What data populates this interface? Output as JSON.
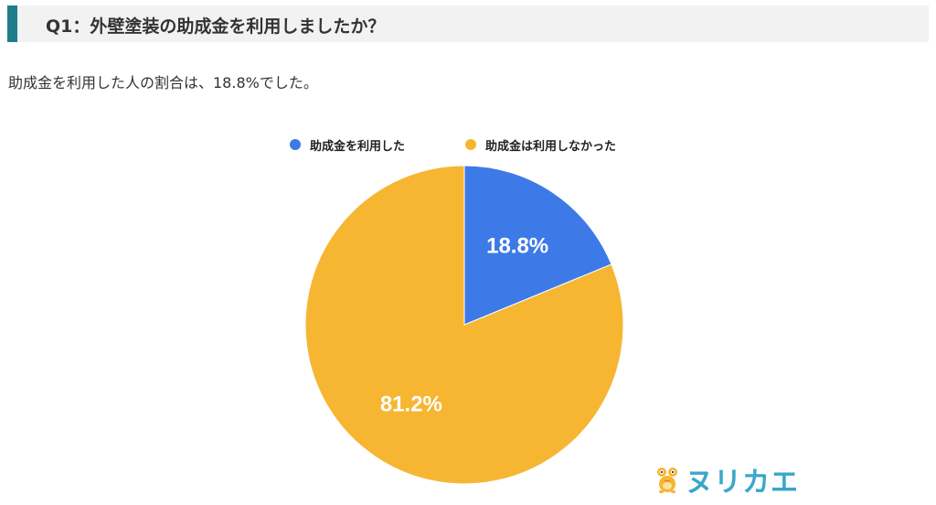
{
  "question": {
    "title": "Q1：外壁塗装の助成金を利用しましたか？"
  },
  "summary": "助成金を利用した人の割合は、18.8%でした。",
  "chart_data": {
    "type": "pie",
    "categories": [
      "助成金を利用した",
      "助成金は利用しなかった"
    ],
    "values": [
      18.8,
      81.2
    ],
    "data_labels": [
      "18.8%",
      "81.2%"
    ],
    "colors": [
      "#3d7ae8",
      "#f6b632"
    ],
    "legend_position": "top",
    "start_angle": "12 o'clock, clockwise"
  },
  "logo": {
    "text": "ヌリカエ",
    "mascot_icon": "frog-mascot-icon"
  }
}
